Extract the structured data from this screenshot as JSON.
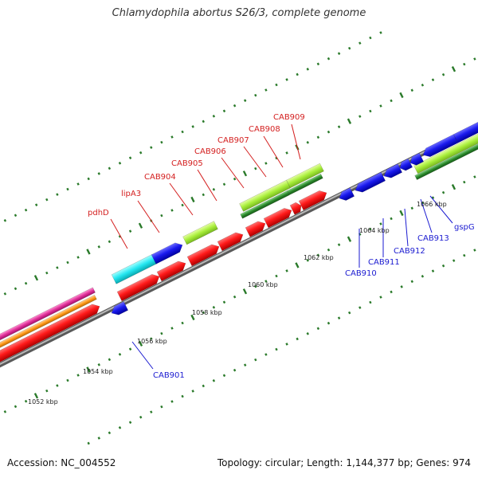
{
  "title": "Chlamydophila abortus S26/3, complete genome",
  "footer": {
    "accession": "Accession: NC_004552",
    "summary": "Topology: circular; Length: 1,144,377 bp; Genes: 974"
  },
  "colors": {
    "backbone": "#8a8a8a",
    "tick": "#2a7a2a",
    "forward_label": "#d42020",
    "reverse_label": "#1a1ad0",
    "cds_red": "#ff1a1a",
    "cds_blue": "#1a1aee",
    "cds_cyan": "#22e6f0",
    "lime": "#a8ee3a",
    "darkgreen": "#2e8a2e",
    "magenta": "#e0309a",
    "orange": "#ff9a1a"
  },
  "kbp_labels": [
    "1052 kbp",
    "1054 kbp",
    "1056 kbp",
    "1058 kbp",
    "1060 kbp",
    "1062 kbp",
    "1064 kbp",
    "1066 kbp"
  ],
  "forward_genes": [
    "pdhD",
    "lipA3",
    "CAB904",
    "CAB905",
    "CAB906",
    "CAB907",
    "CAB908",
    "CAB909"
  ],
  "reverse_genes": [
    "CAB901",
    "CAB910",
    "CAB911",
    "CAB912",
    "CAB913",
    "gspG"
  ]
}
